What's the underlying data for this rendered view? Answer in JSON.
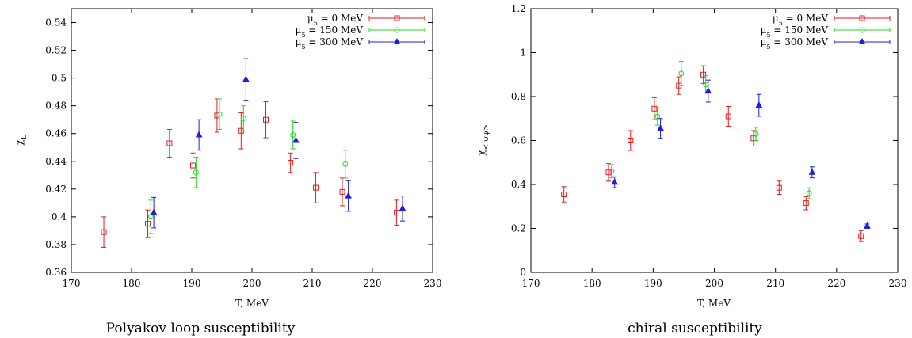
{
  "chart_data": [
    {
      "type": "scatter",
      "title": "",
      "caption": "Polyakov loop susceptibility",
      "xlabel": "T, MeV",
      "ylabel": "χL",
      "xlim": [
        170,
        230
      ],
      "ylim": [
        0.36,
        0.55
      ],
      "xticks": [
        170,
        180,
        190,
        200,
        210,
        220,
        230
      ],
      "yticks": [
        0.36,
        0.38,
        0.4,
        0.42,
        0.44,
        0.46,
        0.48,
        0.5,
        0.52,
        0.54
      ],
      "ytick_labels": [
        "0.36",
        "0.38",
        "0.4",
        "0.42",
        "0.44",
        "0.46",
        "0.48",
        "0.5",
        "0.52",
        "0.54"
      ],
      "grid": false,
      "legend_position": "top-right",
      "series": [
        {
          "name": "μ5 = 0 MeV",
          "marker": "square",
          "color": "#e41a1c",
          "points": [
            {
              "x": 175.4,
              "y": 0.389,
              "err": 0.011
            },
            {
              "x": 182.7,
              "y": 0.395,
              "err": 0.01
            },
            {
              "x": 186.3,
              "y": 0.453,
              "err": 0.01
            },
            {
              "x": 190.2,
              "y": 0.437,
              "err": 0.009
            },
            {
              "x": 194.2,
              "y": 0.473,
              "err": 0.012
            },
            {
              "x": 198.2,
              "y": 0.462,
              "err": 0.013
            },
            {
              "x": 202.3,
              "y": 0.47,
              "err": 0.013
            },
            {
              "x": 206.4,
              "y": 0.439,
              "err": 0.007
            },
            {
              "x": 210.6,
              "y": 0.421,
              "err": 0.011
            },
            {
              "x": 215.0,
              "y": 0.418,
              "err": 0.01
            },
            {
              "x": 224.0,
              "y": 0.403,
              "err": 0.009
            }
          ]
        },
        {
          "name": "μ5 = 150 MeV",
          "marker": "circle",
          "color": "#22d922",
          "points": [
            {
              "x": 183.2,
              "y": 0.4,
              "err": 0.012
            },
            {
              "x": 190.7,
              "y": 0.432,
              "err": 0.011
            },
            {
              "x": 194.6,
              "y": 0.474,
              "err": 0.011
            },
            {
              "x": 198.6,
              "y": 0.471,
              "err": 0.009
            },
            {
              "x": 206.8,
              "y": 0.459,
              "err": 0.01
            },
            {
              "x": 215.5,
              "y": 0.438,
              "err": 0.01
            }
          ]
        },
        {
          "name": "μ5 = 300 MeV",
          "marker": "triangle",
          "color": "#1e1edc",
          "points": [
            {
              "x": 183.7,
              "y": 0.403,
              "err": 0.011
            },
            {
              "x": 191.2,
              "y": 0.459,
              "err": 0.011
            },
            {
              "x": 199.0,
              "y": 0.499,
              "err": 0.015
            },
            {
              "x": 207.3,
              "y": 0.455,
              "err": 0.013
            },
            {
              "x": 216.0,
              "y": 0.415,
              "err": 0.011
            },
            {
              "x": 225.0,
              "y": 0.406,
              "err": 0.009
            }
          ]
        }
      ]
    },
    {
      "type": "scatter",
      "title": "",
      "caption": "chiral susceptibility",
      "xlabel": "T, MeV",
      "ylabel": "χ< ψ̄ψ>",
      "xlim": [
        170,
        230
      ],
      "ylim": [
        0,
        1.2
      ],
      "xticks": [
        170,
        180,
        190,
        200,
        210,
        220,
        230
      ],
      "yticks": [
        0,
        0.2,
        0.4,
        0.6,
        0.8,
        1,
        1.2
      ],
      "ytick_labels": [
        "0",
        "0.2",
        "0.4",
        "0.6",
        "0.8",
        "1",
        "1.2"
      ],
      "grid": false,
      "legend_position": "top-right",
      "series": [
        {
          "name": "μ5 = 0 MeV",
          "marker": "square",
          "color": "#e41a1c",
          "points": [
            {
              "x": 175.4,
              "y": 0.355,
              "err": 0.035
            },
            {
              "x": 182.7,
              "y": 0.455,
              "err": 0.04
            },
            {
              "x": 186.3,
              "y": 0.6,
              "err": 0.045
            },
            {
              "x": 190.2,
              "y": 0.745,
              "err": 0.05
            },
            {
              "x": 194.2,
              "y": 0.85,
              "err": 0.04
            },
            {
              "x": 198.2,
              "y": 0.9,
              "err": 0.04
            },
            {
              "x": 202.3,
              "y": 0.71,
              "err": 0.045
            },
            {
              "x": 206.4,
              "y": 0.61,
              "err": 0.035
            },
            {
              "x": 210.6,
              "y": 0.385,
              "err": 0.03
            },
            {
              "x": 215.0,
              "y": 0.315,
              "err": 0.03
            },
            {
              "x": 224.0,
              "y": 0.165,
              "err": 0.025
            }
          ]
        },
        {
          "name": "μ5 = 150 MeV",
          "marker": "circle",
          "color": "#22d922",
          "points": [
            {
              "x": 183.2,
              "y": 0.46,
              "err": 0.03
            },
            {
              "x": 190.7,
              "y": 0.71,
              "err": 0.04
            },
            {
              "x": 194.6,
              "y": 0.905,
              "err": 0.055
            },
            {
              "x": 198.6,
              "y": 0.855,
              "err": 0.04
            },
            {
              "x": 206.8,
              "y": 0.63,
              "err": 0.03
            },
            {
              "x": 215.5,
              "y": 0.36,
              "err": 0.025
            }
          ]
        },
        {
          "name": "μ5 = 300 MeV",
          "marker": "triangle",
          "color": "#1e1edc",
          "points": [
            {
              "x": 183.7,
              "y": 0.41,
              "err": 0.025
            },
            {
              "x": 191.2,
              "y": 0.655,
              "err": 0.045
            },
            {
              "x": 199.0,
              "y": 0.825,
              "err": 0.05
            },
            {
              "x": 207.3,
              "y": 0.76,
              "err": 0.05
            },
            {
              "x": 216.0,
              "y": 0.455,
              "err": 0.025
            },
            {
              "x": 225.0,
              "y": 0.21,
              "err": 0.01
            }
          ]
        }
      ]
    }
  ]
}
